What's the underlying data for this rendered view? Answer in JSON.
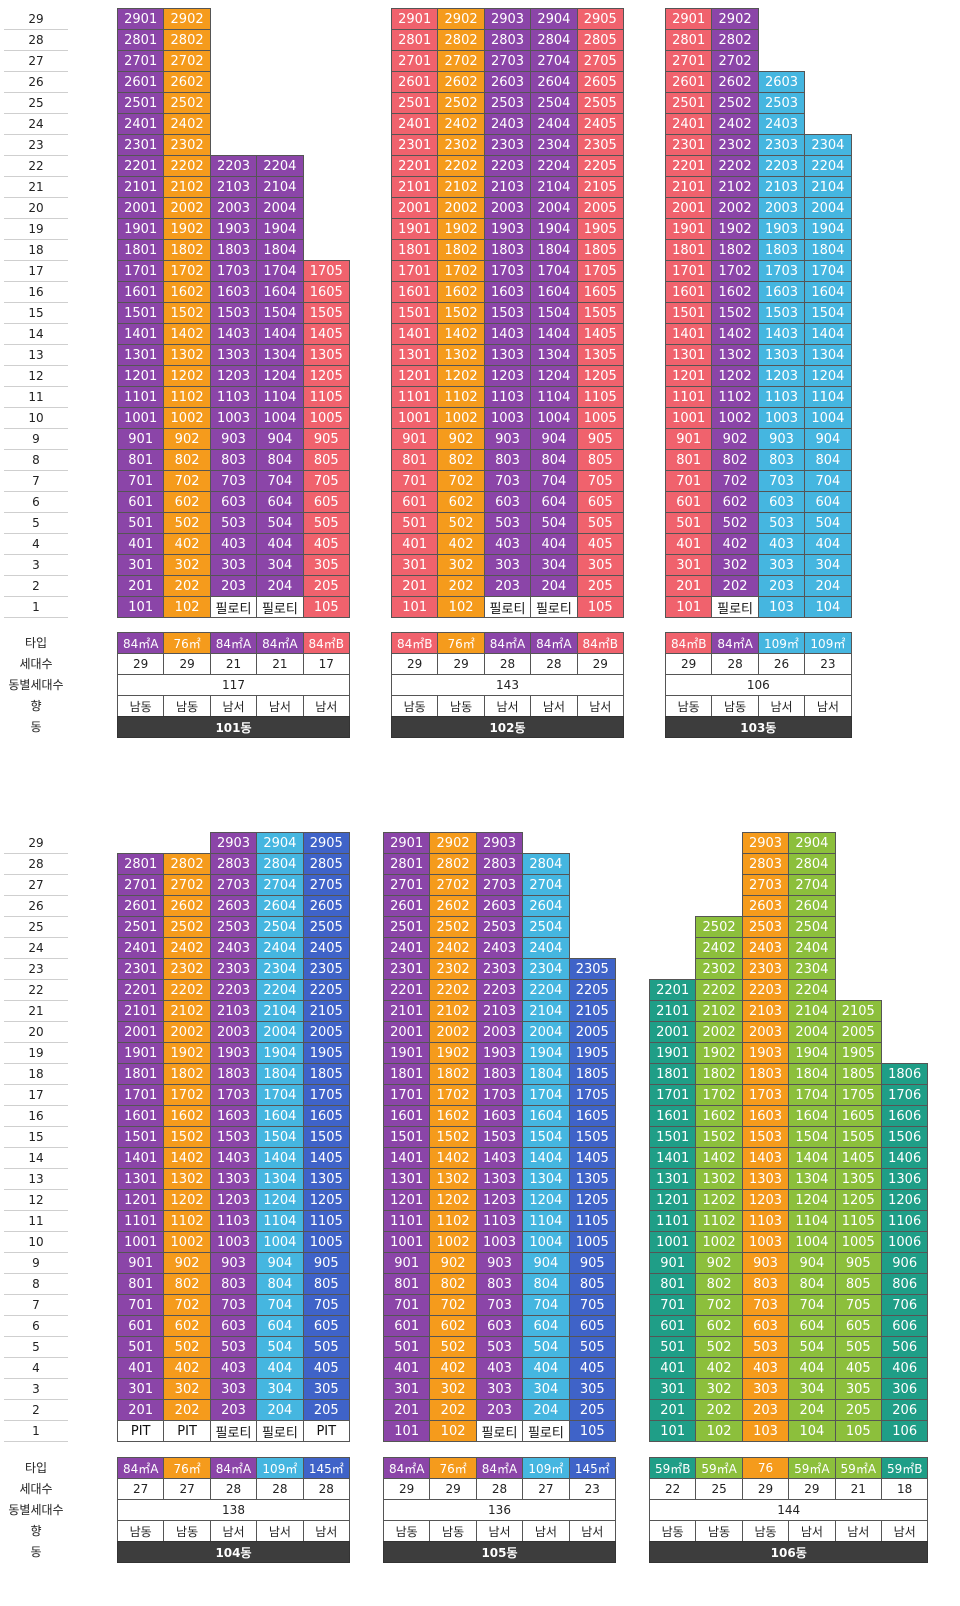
{
  "colors": {
    "purple": "#8b45a8",
    "orange": "#f59b1c",
    "pink": "#f0626d",
    "cyan": "#45b6e0",
    "blue": "#3f63c8",
    "teal": "#1f9e87",
    "lime": "#8cbf3c",
    "white": "#ffffff"
  },
  "pilotis_label": "필로티",
  "pit_label": "PIT",
  "row_labels": {
    "type": "타입",
    "units": "세대수",
    "total": "동별세대수",
    "direction": "향",
    "building": "동"
  },
  "buildings": [
    {
      "name": "101동",
      "total": "117",
      "columns": [
        {
          "line": 1,
          "type": "84㎡A",
          "color": "purple",
          "count": "29",
          "top": 29,
          "bottom": "unit",
          "direction": "남동"
        },
        {
          "line": 2,
          "type": "76㎡",
          "color": "orange",
          "count": "29",
          "top": 29,
          "bottom": "unit",
          "direction": "남동"
        },
        {
          "line": 3,
          "type": "84㎡A",
          "color": "purple",
          "count": "21",
          "top": 22,
          "bottom": "pilotis",
          "direction": "남서"
        },
        {
          "line": 4,
          "type": "84㎡A",
          "color": "purple",
          "count": "21",
          "top": 22,
          "bottom": "pilotis",
          "direction": "남서"
        },
        {
          "line": 5,
          "type": "84㎡B",
          "color": "pink",
          "count": "17",
          "top": 17,
          "bottom": "unit",
          "direction": "남서"
        }
      ]
    },
    {
      "name": "102동",
      "total": "143",
      "columns": [
        {
          "line": 1,
          "type": "84㎡B",
          "color": "pink",
          "count": "29",
          "top": 29,
          "bottom": "unit",
          "direction": "남동"
        },
        {
          "line": 2,
          "type": "76㎡",
          "color": "orange",
          "count": "29",
          "top": 29,
          "bottom": "unit",
          "direction": "남동"
        },
        {
          "line": 3,
          "type": "84㎡A",
          "color": "purple",
          "count": "28",
          "top": 29,
          "bottom": "pilotis",
          "direction": "남서"
        },
        {
          "line": 4,
          "type": "84㎡A",
          "color": "purple",
          "count": "28",
          "top": 29,
          "bottom": "pilotis",
          "direction": "남서"
        },
        {
          "line": 5,
          "type": "84㎡B",
          "color": "pink",
          "count": "29",
          "top": 29,
          "bottom": "unit",
          "direction": "남서"
        }
      ]
    },
    {
      "name": "103동",
      "total": "106",
      "columns": [
        {
          "line": 1,
          "type": "84㎡B",
          "color": "pink",
          "count": "29",
          "top": 29,
          "bottom": "unit",
          "direction": "남동"
        },
        {
          "line": 2,
          "type": "84㎡A",
          "color": "purple",
          "count": "28",
          "top": 29,
          "bottom": "pilotis",
          "direction": "남동"
        },
        {
          "line": 3,
          "type": "109㎡",
          "color": "cyan",
          "count": "26",
          "top": 26,
          "bottom": "unit",
          "direction": "남서"
        },
        {
          "line": 4,
          "type": "109㎡",
          "color": "cyan",
          "count": "23",
          "top": 23,
          "bottom": "unit",
          "direction": "남서"
        }
      ]
    },
    {
      "name": "104동",
      "total": "138",
      "columns": [
        {
          "line": 1,
          "type": "84㎡A",
          "color": "purple",
          "count": "27",
          "top": 28,
          "bottom": "pit",
          "direction": "남동"
        },
        {
          "line": 2,
          "type": "76㎡",
          "color": "orange",
          "count": "27",
          "top": 28,
          "bottom": "pit",
          "direction": "남동"
        },
        {
          "line": 3,
          "type": "84㎡A",
          "color": "purple",
          "count": "28",
          "top": 29,
          "bottom": "pilotis",
          "direction": "남서"
        },
        {
          "line": 4,
          "type": "109㎡",
          "color": "cyan",
          "count": "28",
          "top": 29,
          "bottom": "pilotis",
          "direction": "남서"
        },
        {
          "line": 5,
          "type": "145㎡",
          "color": "blue",
          "count": "28",
          "top": 29,
          "bottom": "pit",
          "direction": "남서"
        }
      ]
    },
    {
      "name": "105동",
      "total": "136",
      "columns": [
        {
          "line": 1,
          "type": "84㎡A",
          "color": "purple",
          "count": "29",
          "top": 29,
          "bottom": "unit",
          "direction": "남동"
        },
        {
          "line": 2,
          "type": "76㎡",
          "color": "orange",
          "count": "29",
          "top": 29,
          "bottom": "unit",
          "direction": "남동"
        },
        {
          "line": 3,
          "type": "84㎡A",
          "color": "purple",
          "count": "28",
          "top": 29,
          "bottom": "pilotis",
          "direction": "남서"
        },
        {
          "line": 4,
          "type": "109㎡",
          "color": "cyan",
          "count": "27",
          "top": 28,
          "bottom": "pilotis",
          "direction": "남서"
        },
        {
          "line": 5,
          "type": "145㎡",
          "color": "blue",
          "count": "23",
          "top": 23,
          "bottom": "unit",
          "direction": "남서"
        }
      ]
    },
    {
      "name": "106동",
      "total": "144",
      "columns": [
        {
          "line": 1,
          "type": "59㎡B",
          "color": "teal",
          "count": "22",
          "top": 22,
          "bottom": "unit",
          "direction": "남동"
        },
        {
          "line": 2,
          "type": "59㎡A",
          "color": "lime",
          "count": "25",
          "top": 25,
          "bottom": "unit",
          "direction": "남동"
        },
        {
          "line": 3,
          "type": "76",
          "color": "orange",
          "count": "29",
          "top": 29,
          "bottom": "unit",
          "direction": "남동"
        },
        {
          "line": 4,
          "type": "59㎡A",
          "color": "lime",
          "count": "29",
          "top": 29,
          "bottom": "unit",
          "direction": "남서"
        },
        {
          "line": 5,
          "type": "59㎡A",
          "color": "lime",
          "count": "21",
          "top": 21,
          "bottom": "unit",
          "direction": "남서"
        },
        {
          "line": 6,
          "type": "59㎡B",
          "color": "teal",
          "count": "18",
          "top": 18,
          "bottom": "unit",
          "direction": "남서"
        }
      ]
    }
  ],
  "teal_lower_overrides": {
    "building": "106동",
    "note_color": "teal"
  }
}
